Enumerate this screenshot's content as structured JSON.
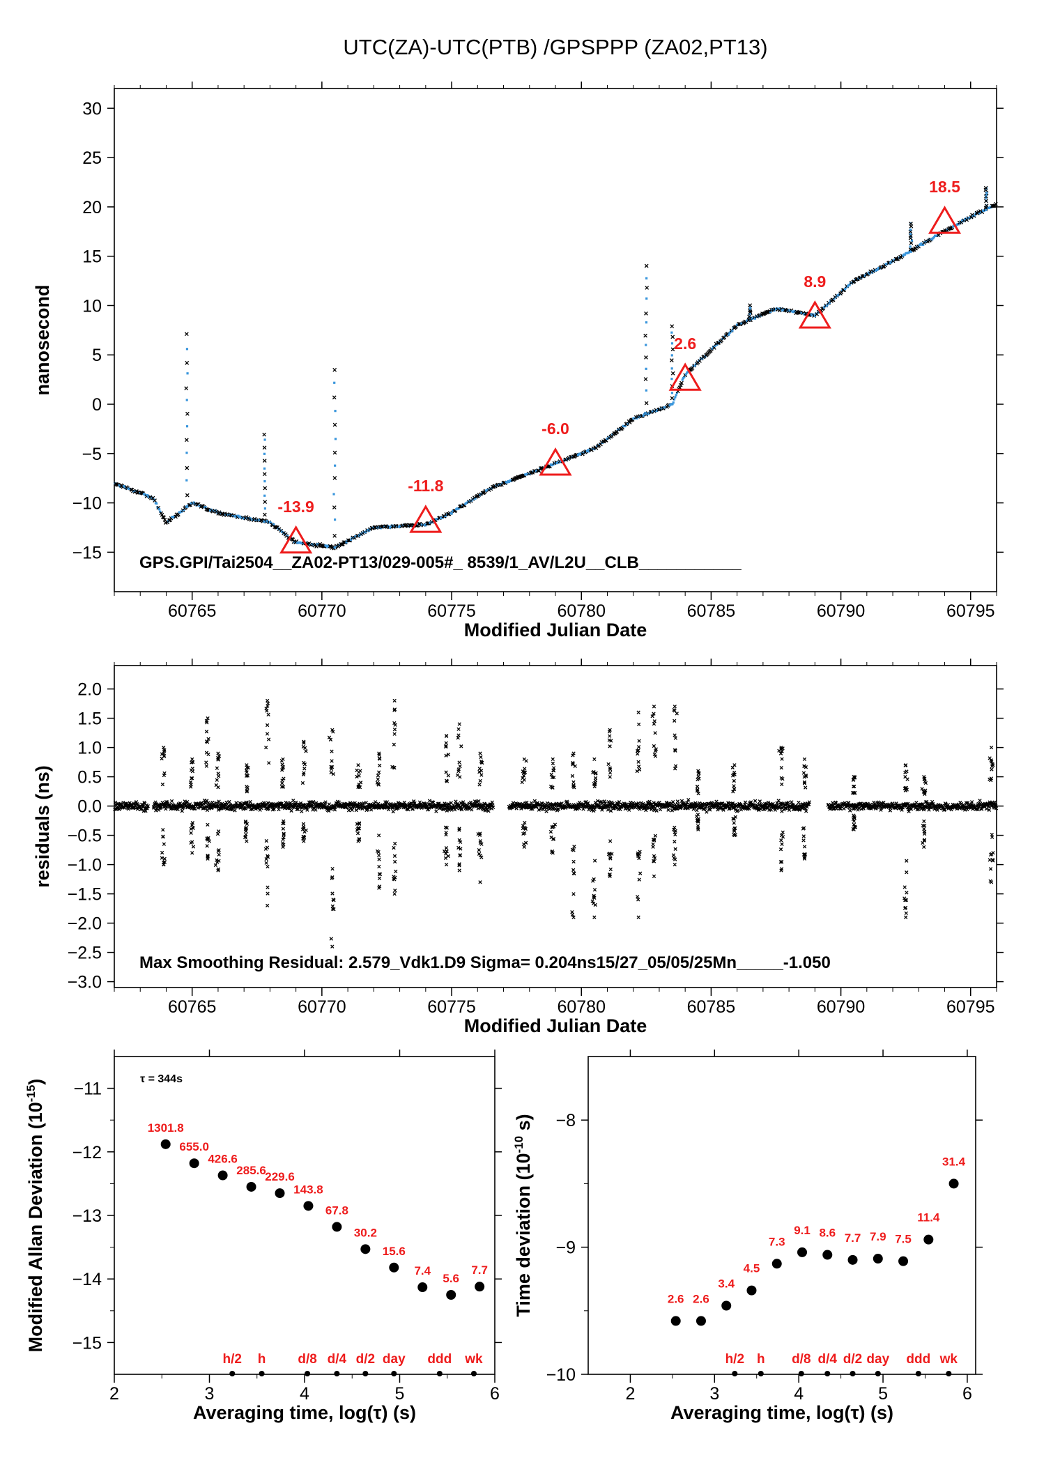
{
  "title": "UTC(ZA)-UTC(PTB)  /GPSPPP  (ZA02,PT13)",
  "chart_data": [
    {
      "type": "scatter",
      "xlabel": "Modified Julian Date",
      "ylabel": "nanosecond",
      "xlim": [
        60762,
        60796
      ],
      "ylim": [
        -19,
        32
      ],
      "xticks": [
        60765,
        60770,
        60775,
        60780,
        60785,
        60790,
        60795
      ],
      "yticks": [
        -15,
        -10,
        -5,
        0,
        5,
        10,
        15,
        20,
        25,
        30
      ],
      "footnote": "GPS.GPI/Tai2504__ZA02-PT13/029-005#_  8539/1_AV/L2U__CLB___________",
      "trend": {
        "x": [
          60762,
          60763.5,
          60764,
          60765,
          60766,
          60767,
          60768,
          60769,
          60770.5,
          60772,
          60774,
          60775,
          60776.5,
          60778,
          60779,
          60780.5,
          60782,
          60783.5,
          60784,
          60786,
          60787.5,
          60789,
          60790.5,
          60792,
          60793.5,
          60795,
          60796
        ],
        "y": [
          -8.0,
          -9.5,
          -12.0,
          -10.0,
          -11.0,
          -11.5,
          -12.0,
          -14.0,
          -14.5,
          -12.5,
          -12.2,
          -11.0,
          -8.5,
          -7.0,
          -6.0,
          -4.5,
          -1.5,
          0.0,
          3.0,
          8.0,
          9.7,
          9.0,
          12.5,
          14.5,
          16.8,
          19.0,
          20.3
        ]
      },
      "spikes": [
        {
          "x": 60764.8,
          "y": 7.0
        },
        {
          "x": 60770.5,
          "y": 3.5
        },
        {
          "x": 60767.8,
          "y": -3.0
        },
        {
          "x": 60782.5,
          "y": 14.0
        },
        {
          "x": 60783.5,
          "y": 8.0
        },
        {
          "x": 60786.5,
          "y": 10.0
        },
        {
          "x": 60792.7,
          "y": 18.5
        },
        {
          "x": 60795.6,
          "y": 22.0
        }
      ],
      "markers": [
        {
          "x": 60769,
          "y": -13.9,
          "label": "-13.9"
        },
        {
          "x": 60774,
          "y": -11.8,
          "label": "-11.8"
        },
        {
          "x": 60779,
          "y": -6.0,
          "label": "-6.0"
        },
        {
          "x": 60784,
          "y": 2.6,
          "label": "2.6"
        },
        {
          "x": 60789,
          "y": 8.9,
          "label": "8.9"
        },
        {
          "x": 60794,
          "y": 18.5,
          "label": "18.5"
        }
      ],
      "colors": {
        "points": "#3a96dc",
        "outliers": "#000000",
        "markers": "#ee1c1c"
      }
    },
    {
      "type": "scatter",
      "xlabel": "Modified Julian Date",
      "ylabel": "residuals (ns)",
      "xlim": [
        60762,
        60796
      ],
      "ylim": [
        -3.1,
        2.4
      ],
      "xticks": [
        60765,
        60770,
        60775,
        60780,
        60785,
        60790,
        60795
      ],
      "yticks": [
        -3.0,
        -2.5,
        -2.0,
        -1.5,
        -1.0,
        -0.5,
        0.0,
        0.5,
        1.0,
        1.5,
        2.0
      ],
      "footnote": "Max Smoothing Residual: 2.579_Vdk1.D9  Sigma= 0.204ns15/27_05/05/25Mn_____-1.050",
      "gaps": [
        [
          60763.3,
          60763.5
        ],
        [
          60776.6,
          60777.2
        ],
        [
          60788.8,
          60789.5
        ]
      ],
      "outlier_days": [
        {
          "x": 60763.9,
          "lo": -1.0,
          "hi": 1.0
        },
        {
          "x": 60765.0,
          "lo": -0.8,
          "hi": 0.8
        },
        {
          "x": 60765.6,
          "lo": -0.9,
          "hi": 1.5
        },
        {
          "x": 60766.0,
          "lo": -1.1,
          "hi": 0.9
        },
        {
          "x": 60767.1,
          "lo": -0.6,
          "hi": 0.7
        },
        {
          "x": 60767.9,
          "lo": -1.7,
          "hi": 1.8
        },
        {
          "x": 60768.5,
          "lo": -0.7,
          "hi": 0.8
        },
        {
          "x": 60769.3,
          "lo": -0.6,
          "hi": 1.1
        },
        {
          "x": 60770.4,
          "lo": -2.4,
          "hi": 1.3
        },
        {
          "x": 60771.4,
          "lo": -0.6,
          "hi": 0.7
        },
        {
          "x": 60772.2,
          "lo": -1.4,
          "hi": 0.9
        },
        {
          "x": 60772.8,
          "lo": -1.5,
          "hi": 1.8
        },
        {
          "x": 60774.8,
          "lo": -1.0,
          "hi": 1.2
        },
        {
          "x": 60775.3,
          "lo": -1.1,
          "hi": 1.4
        },
        {
          "x": 60776.1,
          "lo": -1.3,
          "hi": 0.9
        },
        {
          "x": 60777.8,
          "lo": -0.7,
          "hi": 0.8
        },
        {
          "x": 60778.9,
          "lo": -0.8,
          "hi": 0.8
        },
        {
          "x": 60779.7,
          "lo": -1.9,
          "hi": 0.9
        },
        {
          "x": 60780.5,
          "lo": -1.9,
          "hi": 0.8
        },
        {
          "x": 60781.1,
          "lo": -1.2,
          "hi": 1.3
        },
        {
          "x": 60782.2,
          "lo": -1.9,
          "hi": 1.6
        },
        {
          "x": 60782.8,
          "lo": -1.2,
          "hi": 1.7
        },
        {
          "x": 60783.6,
          "lo": -1.0,
          "hi": 1.7
        },
        {
          "x": 60784.5,
          "lo": -0.4,
          "hi": 0.6
        },
        {
          "x": 60785.9,
          "lo": -0.5,
          "hi": 0.7
        },
        {
          "x": 60787.7,
          "lo": -1.1,
          "hi": 1.0
        },
        {
          "x": 60788.6,
          "lo": -0.9,
          "hi": 0.8
        },
        {
          "x": 60790.5,
          "lo": -0.4,
          "hi": 0.5
        },
        {
          "x": 60792.5,
          "lo": -1.9,
          "hi": 0.7
        },
        {
          "x": 60793.2,
          "lo": -0.7,
          "hi": 0.5
        },
        {
          "x": 60795.8,
          "lo": -1.3,
          "hi": 1.0
        }
      ]
    },
    {
      "type": "scatter",
      "xlabel": "Averaging time, log(τ) (s)",
      "ylabel": "Modified Allan Deviation (10^-15)",
      "ylabel_main": "Modified Allan Deviation (10",
      "ylabel_exp": "-15",
      "ylabel_end": ")",
      "annotation": "τ = 344s",
      "xlim": [
        2,
        6
      ],
      "ylim": [
        -15.5,
        -10.5
      ],
      "xticks": [
        2,
        3,
        4,
        5,
        6
      ],
      "yticks": [
        -15,
        -14,
        -13,
        -12,
        -11
      ],
      "x": [
        2.54,
        2.84,
        3.14,
        3.44,
        3.74,
        4.04,
        4.34,
        4.64,
        4.94,
        5.24,
        5.54,
        5.84
      ],
      "y": [
        -11.88,
        -12.18,
        -12.37,
        -12.55,
        -12.65,
        -12.85,
        -13.18,
        -13.53,
        -13.82,
        -14.13,
        -14.25,
        -14.12
      ],
      "labels": [
        "1301.8",
        "655.0",
        "426.6",
        "285.6",
        "229.6",
        "143.8",
        "67.8",
        "30.2",
        "15.6",
        "7.4",
        "5.6",
        "7.7"
      ],
      "ref_marks": [
        {
          "x": 3.24,
          "label": "h/2"
        },
        {
          "x": 3.55,
          "label": "h"
        },
        {
          "x": 4.03,
          "label": "d/8"
        },
        {
          "x": 4.34,
          "label": "d/4"
        },
        {
          "x": 4.64,
          "label": "d/2"
        },
        {
          "x": 4.94,
          "label": "day"
        },
        {
          "x": 5.42,
          "label": "ddd"
        },
        {
          "x": 5.78,
          "label": "wk"
        }
      ]
    },
    {
      "type": "scatter",
      "xlabel": "Averaging time, log(τ) (s)",
      "ylabel": "Time deviation (10^-10 s)",
      "ylabel_main": "Time deviation (10",
      "ylabel_exp": "-10",
      "ylabel_end": " s)",
      "xlim": [
        1.5,
        6.1
      ],
      "ylim": [
        -10,
        -7.5
      ],
      "xticks": [
        2,
        3,
        4,
        5,
        6
      ],
      "yticks": [
        -10,
        -9,
        -8
      ],
      "x": [
        2.54,
        2.84,
        3.14,
        3.44,
        3.74,
        4.04,
        4.34,
        4.64,
        4.94,
        5.24,
        5.54,
        5.84
      ],
      "y": [
        -9.58,
        -9.58,
        -9.46,
        -9.34,
        -9.13,
        -9.04,
        -9.06,
        -9.1,
        -9.09,
        -9.11,
        -8.94,
        -8.5
      ],
      "labels": [
        "2.6",
        "2.6",
        "3.4",
        "4.5",
        "7.3",
        "9.1",
        "8.6",
        "7.7",
        "7.9",
        "7.5",
        "11.4",
        "31.4"
      ],
      "ref_marks": [
        {
          "x": 3.24,
          "label": "h/2"
        },
        {
          "x": 3.55,
          "label": "h"
        },
        {
          "x": 4.03,
          "label": "d/8"
        },
        {
          "x": 4.34,
          "label": "d/4"
        },
        {
          "x": 4.64,
          "label": "d/2"
        },
        {
          "x": 4.94,
          "label": "day"
        },
        {
          "x": 5.42,
          "label": "ddd"
        },
        {
          "x": 5.78,
          "label": "wk"
        }
      ]
    }
  ]
}
